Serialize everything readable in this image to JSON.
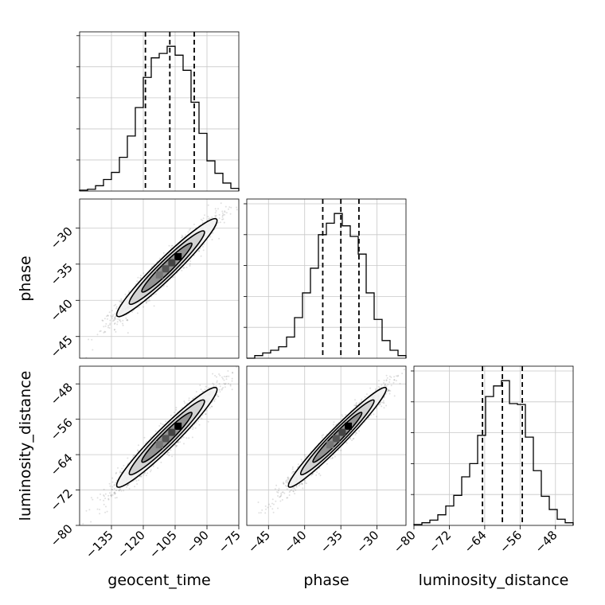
{
  "chart_data": {
    "type": "corner",
    "parameters": [
      "geocent_time",
      "phase",
      "luminosity_distance"
    ],
    "ranges": {
      "geocent_time": [
        -150,
        -75
      ],
      "phase": [
        -48,
        -26
      ],
      "luminosity_distance": [
        -80,
        -44
      ]
    },
    "ticks": {
      "geocent_time": [
        -135,
        -120,
        -105,
        -90,
        -75
      ],
      "phase": [
        -45,
        -40,
        -35,
        -30
      ],
      "luminosity_distance": [
        -80,
        -72,
        -64,
        -56,
        -48
      ]
    },
    "tick_labels": {
      "geocent_time": [
        "−135",
        "−120",
        "−105",
        "−90",
        "−75"
      ],
      "phase": [
        "−45",
        "−40",
        "−35",
        "−30"
      ],
      "luminosity_distance": [
        "−80",
        "−72",
        "−64",
        "−56",
        "−48"
      ]
    },
    "quantiles": {
      "geocent_time": [
        -119,
        -107.5,
        -96
      ],
      "phase": [
        -37.5,
        -35,
        -32.5
      ],
      "luminosity_distance": [
        -64.5,
        -60,
        -55.5
      ]
    },
    "histograms": {
      "geocent_time": {
        "bins": [
          -150,
          -146.25,
          -142.5,
          -138.75,
          -135,
          -131.25,
          -127.5,
          -123.75,
          -120,
          -116.25,
          -112.5,
          -108.75,
          -105,
          -101.25,
          -97.5,
          -93.75,
          -90,
          -86.25,
          -82.5,
          -78.75,
          -75
        ],
        "counts": [
          1,
          2,
          6,
          13,
          21,
          38,
          62,
          94,
          128,
          150,
          155,
          163,
          153,
          136,
          100,
          65,
          34,
          20,
          9,
          3
        ]
      },
      "phase": {
        "bins": [
          -48,
          -46.9,
          -45.8,
          -44.7,
          -43.6,
          -42.5,
          -41.4,
          -40.3,
          -39.2,
          -38.1,
          -37,
          -35.9,
          -34.8,
          -33.7,
          -32.6,
          -31.5,
          -30.4,
          -29.3,
          -28.2,
          -27.1,
          -26
        ],
        "counts": [
          0,
          3,
          6,
          9,
          13,
          24,
          46,
          74,
          102,
          140,
          153,
          164,
          150,
          138,
          118,
          74,
          44,
          20,
          9,
          3
        ]
      },
      "luminosity_distance": {
        "bins": [
          -80,
          -78.2,
          -76.4,
          -74.6,
          -72.8,
          -71,
          -69.2,
          -67.4,
          -65.6,
          -63.8,
          -62,
          -60.2,
          -58.4,
          -56.6,
          -54.8,
          -53,
          -51.2,
          -49.4,
          -47.6,
          -45.8,
          -44
        ],
        "counts": [
          1,
          3,
          6,
          12,
          22,
          34,
          55,
          70,
          102,
          146,
          158,
          164,
          138,
          137,
          100,
          62,
          33,
          18,
          7,
          3
        ]
      }
    },
    "correlations": {
      "phase|geocent_time": 0.96,
      "luminosity_distance|geocent_time": 0.96,
      "luminosity_distance|phase": 0.97
    },
    "grid": true
  }
}
